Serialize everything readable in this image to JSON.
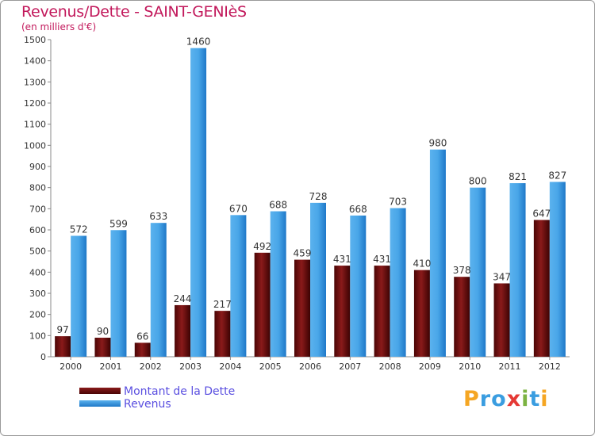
{
  "header": {
    "title": "Revenus/Dette - SAINT-GENIèS",
    "subtitle": "(en milliers d'€)"
  },
  "legend": [
    {
      "label": "Montant de la Dette",
      "color": "#6e0a0a"
    },
    {
      "label": "Revenus",
      "color": "#3a9de0"
    }
  ],
  "logo": {
    "text": "Proxiti",
    "letters": [
      {
        "ch": "P",
        "color": "#f5a623"
      },
      {
        "ch": "r",
        "color": "#3a9de0"
      },
      {
        "ch": "o",
        "color": "#3a9de0"
      },
      {
        "ch": "x",
        "color": "#e53935"
      },
      {
        "ch": "i",
        "color": "#7cb342"
      },
      {
        "ch": "t",
        "color": "#3a9de0"
      },
      {
        "ch": "i",
        "color": "#f5a623"
      }
    ]
  },
  "chart_data": {
    "type": "bar",
    "title": "Revenus/Dette - SAINT-GENIèS",
    "subtitle": "(en milliers d'€)",
    "categories": [
      "2000",
      "2001",
      "2002",
      "2003",
      "2004",
      "2005",
      "2006",
      "2007",
      "2008",
      "2009",
      "2010",
      "2011",
      "2012"
    ],
    "series": [
      {
        "name": "Montant de la Dette",
        "color": "#6e0a0a",
        "values": [
          97,
          90,
          66,
          244,
          217,
          492,
          459,
          431,
          431,
          410,
          378,
          347,
          647
        ]
      },
      {
        "name": "Revenus",
        "color": "#3a9de0",
        "values": [
          572,
          599,
          633,
          1460,
          670,
          688,
          728,
          668,
          703,
          980,
          800,
          821,
          827
        ]
      }
    ],
    "ylim": [
      0,
      1500
    ],
    "yticks": [
      0,
      100,
      200,
      300,
      400,
      500,
      600,
      700,
      800,
      900,
      1000,
      1100,
      1200,
      1300,
      1400,
      1500
    ],
    "grid": false,
    "legend_position": "bottom-left"
  }
}
